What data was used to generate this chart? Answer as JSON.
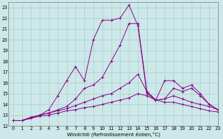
{
  "xlabel": "Windchill (Refroidissement éolien,°C)",
  "bg_color": "#cce8e8",
  "grid_color": "#aacccc",
  "line_color": "#880088",
  "xlim": [
    -0.5,
    23
  ],
  "ylim": [
    12,
    23.5
  ],
  "xticks": [
    0,
    1,
    2,
    3,
    4,
    5,
    6,
    7,
    8,
    9,
    10,
    11,
    12,
    13,
    14,
    15,
    16,
    17,
    18,
    19,
    20,
    21,
    22,
    23
  ],
  "yticks": [
    12,
    13,
    14,
    15,
    16,
    17,
    18,
    19,
    20,
    21,
    22,
    23
  ],
  "curves": [
    [
      12.5,
      12.5,
      12.8,
      13.0,
      13.5,
      14.8,
      16.2,
      17.5,
      16.2,
      20.0,
      21.8,
      21.8,
      22.0,
      23.2,
      21.3,
      15.0,
      14.4,
      16.2,
      16.2,
      15.5,
      15.8,
      15.0,
      14.0,
      13.5
    ],
    [
      12.5,
      12.5,
      12.8,
      13.0,
      13.2,
      13.5,
      13.8,
      14.5,
      15.5,
      15.8,
      16.5,
      18.0,
      19.5,
      21.5,
      21.5,
      15.2,
      14.4,
      14.5,
      15.5,
      15.2,
      15.5,
      14.8,
      14.0,
      13.5
    ],
    [
      12.5,
      12.5,
      12.8,
      13.0,
      13.2,
      13.4,
      13.6,
      13.9,
      14.2,
      14.5,
      14.8,
      15.0,
      15.5,
      16.0,
      16.8,
      15.2,
      14.4,
      14.5,
      14.8,
      14.5,
      14.2,
      14.0,
      13.8,
      13.5
    ],
    [
      12.5,
      12.5,
      12.7,
      12.9,
      13.0,
      13.2,
      13.4,
      13.5,
      13.7,
      13.8,
      14.0,
      14.2,
      14.4,
      14.6,
      15.0,
      14.8,
      14.4,
      14.2,
      14.2,
      14.0,
      13.8,
      13.6,
      13.4,
      13.3
    ]
  ]
}
